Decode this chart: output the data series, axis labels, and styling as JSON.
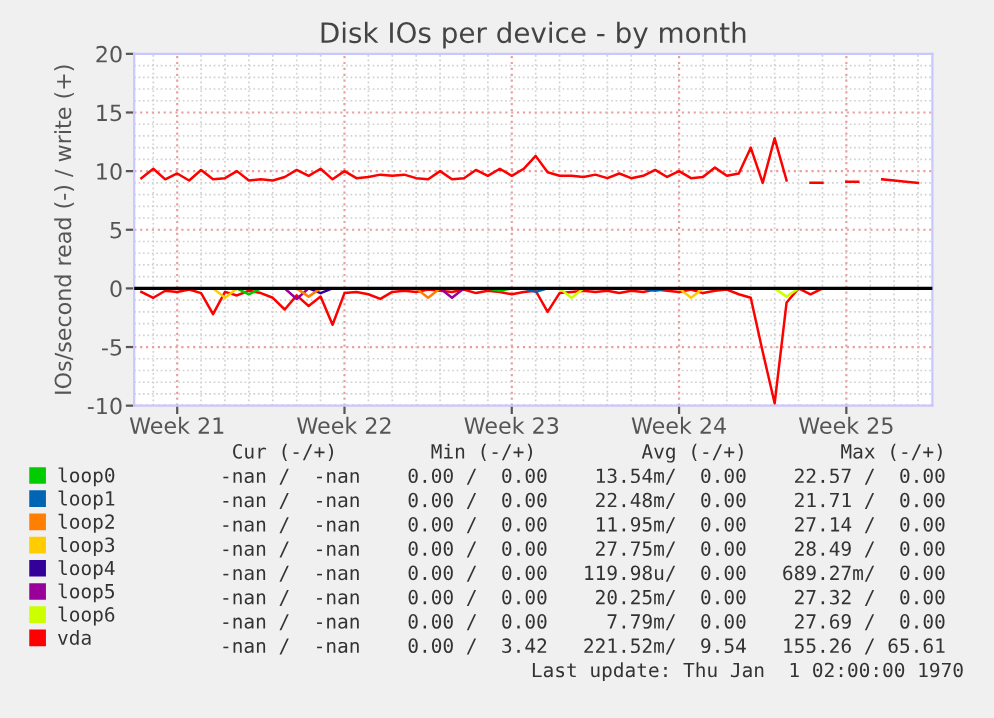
{
  "chart_data": {
    "type": "line",
    "title": "Disk IOs per device - by month",
    "ylabel": "IOs/second read (-) / write (+)",
    "categories": [
      null,
      null,
      null,
      "Week 21",
      null,
      null,
      null,
      null,
      null,
      null,
      null,
      null,
      null,
      null,
      null,
      null,
      null,
      "Week 22",
      null,
      null,
      null,
      null,
      null,
      null,
      null,
      null,
      null,
      null,
      null,
      null,
      null,
      "Week 23",
      null,
      null,
      null,
      null,
      null,
      null,
      null,
      null,
      null,
      null,
      null,
      null,
      null,
      "Week 24",
      null,
      null,
      null,
      null,
      null,
      null,
      null,
      null,
      null,
      null,
      null,
      null,
      null,
      "Week 25",
      null,
      null,
      null,
      null,
      null,
      null
    ],
    "ylim": [
      -10,
      20
    ],
    "yticks": [
      -10,
      -5,
      0,
      5,
      10,
      15,
      20
    ],
    "grid": true,
    "legend": "bottom",
    "marker": "none",
    "line_style": "solid",
    "ref_lines": [
      {
        "axis": "y",
        "value": 0,
        "color": "#000000"
      }
    ],
    "series": [
      {
        "name": "loop0",
        "color": "#00cc00",
        "values": [
          null,
          null,
          null,
          null,
          null,
          null,
          null,
          null,
          0,
          -0.5,
          0,
          null,
          null,
          null,
          null,
          null,
          null,
          null,
          null,
          null,
          null,
          null,
          null,
          null,
          null,
          null,
          null,
          null,
          null,
          0,
          -0.2,
          0,
          null,
          null,
          null,
          null,
          null,
          null,
          null,
          null,
          null,
          null,
          null,
          null,
          null,
          null,
          null,
          null,
          null,
          null,
          null,
          null,
          null,
          null,
          null,
          null,
          null,
          null,
          null,
          null,
          null,
          null,
          null,
          null,
          null,
          null
        ]
      },
      {
        "name": "loop1",
        "color": "#0066b3",
        "values": [
          null,
          null,
          null,
          null,
          null,
          null,
          null,
          null,
          null,
          null,
          null,
          null,
          null,
          null,
          null,
          null,
          null,
          null,
          null,
          null,
          null,
          null,
          null,
          null,
          null,
          null,
          null,
          null,
          null,
          null,
          null,
          null,
          0,
          -0.3,
          0,
          null,
          null,
          null,
          null,
          null,
          null,
          null,
          0,
          -0.2,
          0,
          null,
          null,
          null,
          null,
          null,
          null,
          null,
          null,
          null,
          null,
          null,
          null,
          null,
          null,
          null,
          null,
          null,
          null,
          null,
          null,
          null
        ]
      },
      {
        "name": "loop2",
        "color": "#ff8000",
        "values": [
          null,
          null,
          null,
          null,
          null,
          null,
          null,
          null,
          null,
          null,
          null,
          null,
          null,
          0,
          -0.7,
          0,
          null,
          null,
          null,
          null,
          null,
          null,
          null,
          0,
          -0.8,
          0,
          null,
          null,
          null,
          null,
          null,
          null,
          null,
          null,
          null,
          null,
          null,
          null,
          null,
          null,
          null,
          null,
          null,
          null,
          null,
          null,
          null,
          null,
          null,
          null,
          null,
          null,
          null,
          null,
          null,
          null,
          null,
          null,
          null,
          null,
          null,
          null,
          null,
          null,
          null,
          null
        ]
      },
      {
        "name": "loop3",
        "color": "#ffcc00",
        "values": [
          null,
          null,
          null,
          null,
          null,
          null,
          0,
          -0.8,
          0,
          null,
          null,
          null,
          null,
          null,
          null,
          null,
          null,
          null,
          null,
          null,
          null,
          null,
          null,
          null,
          null,
          null,
          null,
          null,
          null,
          null,
          null,
          null,
          null,
          null,
          null,
          null,
          null,
          null,
          null,
          null,
          null,
          null,
          null,
          null,
          null,
          0,
          -0.8,
          0,
          null,
          null,
          null,
          null,
          null,
          null,
          null,
          null,
          null,
          null,
          null,
          null,
          null,
          null,
          null,
          null,
          null,
          null
        ]
      },
      {
        "name": "loop4",
        "color": "#330099",
        "values": [
          null,
          null,
          null,
          null,
          null,
          null,
          null,
          null,
          null,
          null,
          null,
          null,
          null,
          null,
          0,
          -0.4,
          0,
          null,
          null,
          null,
          null,
          null,
          null,
          null,
          null,
          null,
          null,
          null,
          null,
          null,
          null,
          null,
          null,
          null,
          null,
          null,
          null,
          null,
          null,
          null,
          null,
          null,
          null,
          null,
          null,
          null,
          null,
          null,
          null,
          null,
          null,
          null,
          null,
          null,
          null,
          null,
          null,
          null,
          null,
          null,
          null,
          null,
          null,
          null,
          null,
          null
        ]
      },
      {
        "name": "loop5",
        "color": "#990099",
        "values": [
          null,
          null,
          null,
          null,
          null,
          null,
          null,
          null,
          null,
          null,
          null,
          null,
          0,
          -0.9,
          0,
          null,
          null,
          null,
          null,
          null,
          null,
          null,
          null,
          null,
          null,
          0,
          -0.8,
          0,
          null,
          null,
          null,
          null,
          null,
          null,
          null,
          null,
          null,
          null,
          null,
          null,
          null,
          null,
          null,
          null,
          null,
          null,
          null,
          null,
          null,
          null,
          null,
          null,
          null,
          null,
          null,
          null,
          null,
          null,
          null,
          null,
          null,
          null,
          null,
          null,
          null,
          null
        ]
      },
      {
        "name": "loop6",
        "color": "#ccff00",
        "values": [
          null,
          null,
          null,
          null,
          null,
          null,
          null,
          null,
          null,
          null,
          null,
          null,
          null,
          null,
          null,
          null,
          null,
          null,
          null,
          null,
          null,
          null,
          null,
          null,
          null,
          null,
          null,
          null,
          null,
          null,
          null,
          null,
          null,
          null,
          null,
          0,
          -0.8,
          0,
          null,
          null,
          null,
          null,
          null,
          null,
          null,
          null,
          null,
          null,
          null,
          null,
          null,
          null,
          null,
          0,
          -0.7,
          0,
          null,
          null,
          null,
          null,
          null,
          null,
          null,
          null,
          null,
          null
        ]
      },
      {
        "name": "vda",
        "color": "#ff0000",
        "values": [
          9.4,
          10.2,
          9.3,
          9.8,
          9.2,
          10.1,
          9.3,
          9.4,
          10.0,
          9.2,
          9.3,
          9.2,
          9.5,
          10.1,
          9.6,
          10.2,
          9.3,
          10.0,
          9.4,
          9.5,
          9.7,
          9.6,
          9.7,
          9.4,
          9.3,
          10.0,
          9.3,
          9.4,
          10.1,
          9.6,
          10.2,
          9.6,
          10.2,
          11.3,
          9.9,
          9.6,
          9.6,
          9.5,
          9.7,
          9.4,
          9.8,
          9.4,
          9.6,
          10.1,
          9.5,
          10.0,
          9.4,
          9.5,
          10.3,
          9.6,
          9.8,
          12.0,
          9.0,
          12.8,
          9.2,
          null,
          9.0,
          9.0,
          null,
          9.1,
          9.1,
          null,
          9.3,
          9.2,
          9.1,
          9.0
        ]
      },
      {
        "color": "#ff0000",
        "values": [
          -0.3,
          -0.8,
          -0.2,
          -0.3,
          -0.1,
          -0.4,
          -2.2,
          -0.3,
          -0.6,
          -0.2,
          -0.4,
          -0.8,
          -1.8,
          -0.6,
          -1.5,
          -0.7,
          -3.1,
          -0.4,
          -0.3,
          -0.5,
          -0.9,
          -0.3,
          -0.2,
          -0.3,
          -0.1,
          -0.2,
          -0.3,
          -0.1,
          -0.4,
          -0.2,
          -0.3,
          -0.5,
          -0.3,
          -0.2,
          -2.0,
          -0.4,
          -0.3,
          -0.2,
          -0.3,
          -0.2,
          -0.4,
          -0.2,
          -0.3,
          -0.1,
          -0.2,
          -0.3,
          -0.1,
          -0.4,
          -0.2,
          -0.1,
          -0.5,
          -0.8,
          -5.4,
          -9.8,
          -1.2,
          0,
          -0.5,
          0,
          null,
          null,
          null,
          null,
          null,
          null,
          null,
          null
        ]
      }
    ],
    "annotations": [
      " Cur (-/+)        Min (-/+)         Avg (-/+)        Max (-/+)",
      "-nan /  -nan    0.00 /  0.00    13.54m/  0.00    22.57 /  0.00",
      "-nan /  -nan    0.00 /  0.00    22.48m/  0.00    21.71 /  0.00",
      "-nan /  -nan    0.00 /  0.00    11.95m/  0.00    27.14 /  0.00",
      "-nan /  -nan    0.00 /  0.00    27.75m/  0.00    28.49 /  0.00",
      "-nan /  -nan    0.00 /  0.00   119.98u/  0.00   689.27m/  0.00",
      "-nan /  -nan    0.00 /  0.00    20.25m/  0.00    27.32 /  0.00",
      "-nan /  -nan    0.00 /  0.00     7.79m/  0.00    27.69 /  0.00",
      "-nan /  -nan    0.00 /  3.42   221.52m/  9.54   155.26 / 65.61",
      "Last update: Thu Jan  1 02:00:00 1970"
    ]
  }
}
